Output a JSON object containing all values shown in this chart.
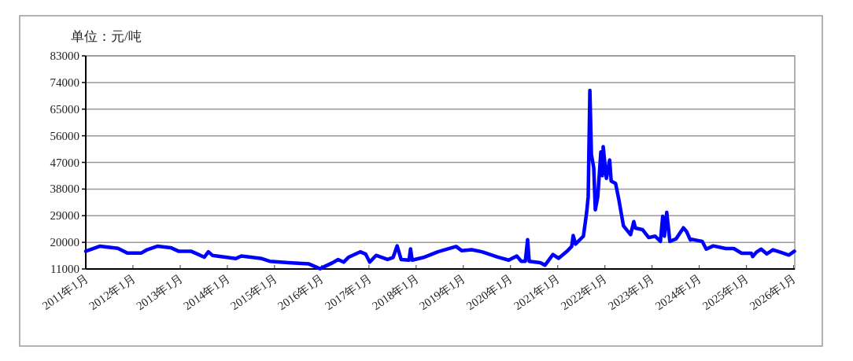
{
  "chart_data": {
    "type": "line",
    "title": "单位：元/吨",
    "x": [
      "2011-01-01",
      "2011-04-19",
      "2011-09-07",
      "2011-11-19",
      "2012-03-07",
      "2012-04-19",
      "2012-07-07",
      "2012-10-19",
      "2012-12-19",
      "2013-03-25",
      "2013-07-07",
      "2013-08-07",
      "2013-09-07",
      "2014-03-07",
      "2014-04-19",
      "2014-09-25",
      "2014-11-25",
      "2015-04-19",
      "2015-09-25",
      "2015-12-07",
      "2015-12-19",
      "2016-03-25",
      "2016-05-07",
      "2016-06-19",
      "2016-07-25",
      "2016-10-25",
      "2016-12-07",
      "2017-01-07",
      "2017-02-25",
      "2017-05-25",
      "2017-07-07",
      "2017-08-07",
      "2017-09-07",
      "2017-11-07",
      "2017-11-19",
      "2017-12-01",
      "2018-03-07",
      "2018-06-19",
      "2018-11-07",
      "2018-12-19",
      "2019-03-07",
      "2019-05-25",
      "2019-09-25",
      "2019-12-19",
      "2020-02-19",
      "2020-03-25",
      "2020-04-25",
      "2020-05-13",
      "2020-05-25",
      "2020-08-19",
      "2020-09-25",
      "2020-11-25",
      "2021-01-07",
      "2021-03-19",
      "2021-04-19",
      "2021-05-01",
      "2021-05-19",
      "2021-07-19",
      "2021-08-13",
      "2021-08-25",
      "2021-09-07",
      "2021-09-19",
      "2021-10-07",
      "2021-10-19",
      "2021-11-07",
      "2021-12-01",
      "2021-12-13",
      "2021-12-19",
      "2022-01-13",
      "2022-02-07",
      "2022-02-19",
      "2022-03-25",
      "2022-04-19",
      "2022-05-25",
      "2022-07-19",
      "2022-08-13",
      "2022-08-25",
      "2022-10-19",
      "2022-12-07",
      "2023-01-25",
      "2023-03-07",
      "2023-03-25",
      "2023-04-07",
      "2023-04-25",
      "2023-05-19",
      "2023-07-07",
      "2023-09-01",
      "2023-09-25",
      "2023-10-25",
      "2023-11-07",
      "2024-01-25",
      "2024-02-25",
      "2024-04-19",
      "2024-07-25",
      "2024-09-25",
      "2024-11-25",
      "2025-02-07",
      "2025-02-19",
      "2025-03-19",
      "2025-04-25",
      "2025-06-07",
      "2025-07-25",
      "2025-09-25",
      "2025-11-25",
      "2026-01-07"
    ],
    "series": [
      {
        "color": "#0000ff",
        "values": [
          17000,
          18700,
          18000,
          16400,
          16400,
          17500,
          18700,
          18200,
          17000,
          17000,
          15000,
          16800,
          15600,
          14500,
          15400,
          14500,
          13600,
          13100,
          12700,
          11300,
          11100,
          13100,
          14200,
          13300,
          14900,
          16800,
          16000,
          13300,
          15600,
          14200,
          14900,
          18800,
          14200,
          14000,
          17800,
          14000,
          15000,
          16800,
          18600,
          17200,
          17500,
          16800,
          15000,
          14000,
          15400,
          13600,
          13600,
          20900,
          13600,
          13100,
          12300,
          15900,
          14600,
          17200,
          18600,
          22300,
          19400,
          22100,
          30100,
          35400,
          71300,
          49600,
          45200,
          31000,
          35400,
          50500,
          42500,
          52300,
          41600,
          47800,
          40700,
          39900,
          34500,
          25600,
          22600,
          27000,
          24800,
          24300,
          21600,
          22100,
          20300,
          28800,
          22100,
          30100,
          20300,
          21200,
          24900,
          23700,
          20800,
          21000,
          20300,
          17700,
          18800,
          17900,
          17900,
          16300,
          16300,
          15200,
          16700,
          17700,
          16100,
          17500,
          16600,
          15700,
          17000
        ]
      }
    ],
    "xlim": [
      "2011-01-01",
      "2026-01-10"
    ],
    "xticks": [
      {
        "value": "2011-01",
        "label": "2011年1月"
      },
      {
        "value": "2012-01",
        "label": "2012年1月"
      },
      {
        "value": "2013-01",
        "label": "2013年1月"
      },
      {
        "value": "2014-01",
        "label": "2014年1月"
      },
      {
        "value": "2015-01",
        "label": "2015年1月"
      },
      {
        "value": "2016-01",
        "label": "2016年1月"
      },
      {
        "value": "2017-01",
        "label": "2017年1月"
      },
      {
        "value": "2018-01",
        "label": "2018年1月"
      },
      {
        "value": "2019-01",
        "label": "2019年1月"
      },
      {
        "value": "2020-01",
        "label": "2020年1月"
      },
      {
        "value": "2021-01",
        "label": "2021年1月"
      },
      {
        "value": "2022-01",
        "label": "2022年1月"
      },
      {
        "value": "2023-01",
        "label": "2023年1月"
      },
      {
        "value": "2024-01",
        "label": "2024年1月"
      },
      {
        "value": "2025-01",
        "label": "2025年1月"
      },
      {
        "value": "2026-01",
        "label": "2026年1月"
      }
    ],
    "ylim": [
      11000,
      83000
    ],
    "yticks": [
      11000,
      20000,
      29000,
      38000,
      47000,
      56000,
      65000,
      74000,
      83000
    ],
    "grid": "y",
    "marker": "none",
    "line_style": "solid"
  }
}
